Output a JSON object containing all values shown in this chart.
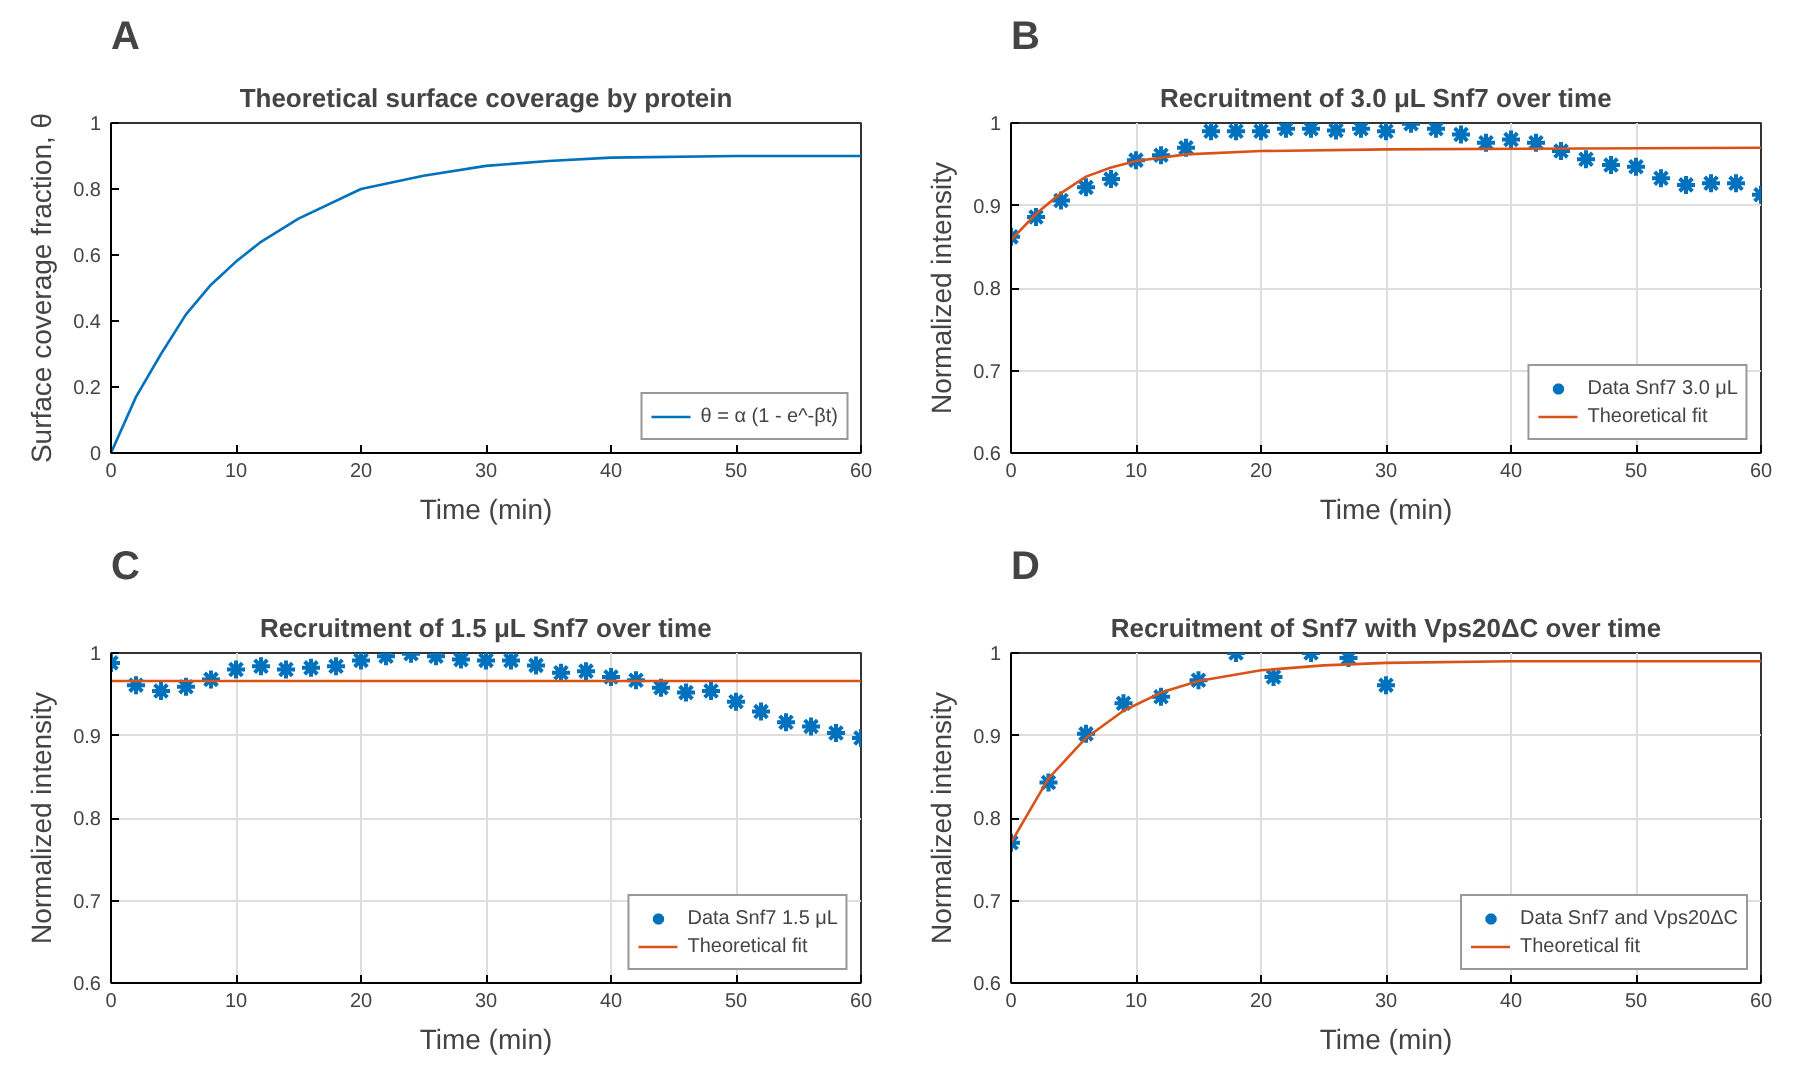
{
  "chart_data": [
    {
      "type": "line",
      "title": "Theoretical surface coverage by protein",
      "xlabel": "Time (min)",
      "ylabel": "Surface coverage fraction, θ",
      "annotations": [
        "A"
      ],
      "xlim": [
        0,
        60
      ],
      "xticks": [
        0,
        10,
        20,
        30,
        40,
        50,
        60
      ],
      "ylim": [
        0,
        1
      ],
      "yticks": [
        0,
        0.2,
        0.4,
        0.6,
        0.8,
        1
      ],
      "grid": false,
      "legend": "bottom right",
      "series": [
        {
          "name": "θ = α (1 - e^-βt)",
          "color": "#0072bd",
          "x": [
            0,
            2,
            4,
            6,
            8,
            10,
            12,
            15,
            20,
            25,
            30,
            35,
            40,
            50,
            60
          ],
          "values": [
            0,
            0.17,
            0.3,
            0.42,
            0.51,
            0.58,
            0.64,
            0.71,
            0.8,
            0.84,
            0.87,
            0.885,
            0.895,
            0.9,
            0.9
          ]
        }
      ]
    },
    {
      "type": "line",
      "title": "Recruitment of 3.0 μL Snf7 over time",
      "xlabel": "Time (min)",
      "ylabel": "Normalized intensity",
      "annotations": [
        "B"
      ],
      "xlim": [
        0,
        60
      ],
      "xticks": [
        0,
        10,
        20,
        30,
        40,
        50,
        60
      ],
      "ylim": [
        0.6,
        1
      ],
      "yticks": [
        0.6,
        0.7,
        0.8,
        0.9,
        1
      ],
      "grid": true,
      "legend": "bottom right",
      "series": [
        {
          "name": "Data Snf7 3.0 μL",
          "type": "scatter",
          "marker": "cross",
          "color": "#0072bd",
          "x": [
            0,
            2,
            4,
            6,
            8,
            10,
            12,
            14,
            16,
            18,
            20,
            22,
            24,
            26,
            28,
            30,
            32,
            34,
            36,
            38,
            40,
            42,
            44,
            46,
            48,
            50,
            52,
            54,
            56,
            58,
            60
          ],
          "values": [
            0.862,
            0.886,
            0.906,
            0.922,
            0.932,
            0.955,
            0.961,
            0.97,
            0.99,
            0.99,
            0.99,
            0.993,
            0.993,
            0.991,
            0.993,
            0.99,
            0.999,
            0.993,
            0.986,
            0.976,
            0.98,
            0.976,
            0.966,
            0.956,
            0.949,
            0.947,
            0.933,
            0.925,
            0.927,
            0.927,
            0.913
          ]
        },
        {
          "name": "Theoretical fit",
          "color": "#d95319",
          "x": [
            0,
            2,
            4,
            6,
            8,
            10,
            14,
            20,
            30,
            60
          ],
          "values": [
            0.858,
            0.89,
            0.915,
            0.935,
            0.946,
            0.954,
            0.962,
            0.966,
            0.968,
            0.97
          ]
        }
      ]
    },
    {
      "type": "line",
      "title": "Recruitment of 1.5 μL Snf7 over time",
      "xlabel": "Time (min)",
      "ylabel": "Normalized intensity",
      "annotations": [
        "C"
      ],
      "xlim": [
        0,
        60
      ],
      "xticks": [
        0,
        10,
        20,
        30,
        40,
        50,
        60
      ],
      "ylim": [
        0.6,
        1
      ],
      "yticks": [
        0.6,
        0.7,
        0.8,
        0.9,
        1
      ],
      "grid": true,
      "legend": "bottom right",
      "series": [
        {
          "name": "Data Snf7 1.5 μL",
          "type": "scatter",
          "marker": "cross",
          "color": "#0072bd",
          "x": [
            0,
            2,
            4,
            6,
            8,
            10,
            12,
            14,
            16,
            18,
            20,
            22,
            24,
            26,
            28,
            30,
            32,
            34,
            36,
            38,
            40,
            42,
            44,
            46,
            48,
            50,
            52,
            54,
            56,
            58,
            60
          ],
          "values": [
            0.988,
            0.961,
            0.954,
            0.959,
            0.968,
            0.98,
            0.984,
            0.98,
            0.982,
            0.984,
            0.991,
            0.996,
            0.999,
            0.996,
            0.992,
            0.991,
            0.991,
            0.985,
            0.976,
            0.978,
            0.971,
            0.967,
            0.958,
            0.952,
            0.954,
            0.941,
            0.929,
            0.916,
            0.911,
            0.903,
            0.897
          ]
        },
        {
          "name": "Theoretical fit",
          "color": "#d95319",
          "x": [
            0,
            60
          ],
          "values": [
            0.966,
            0.966
          ]
        }
      ]
    },
    {
      "type": "line",
      "title": "Recruitment of Snf7 with Vps20ΔC over time",
      "xlabel": "Time (min)",
      "ylabel": "Normalized intensity",
      "annotations": [
        "D"
      ],
      "xlim": [
        0,
        60
      ],
      "xticks": [
        0,
        10,
        20,
        30,
        40,
        50,
        60
      ],
      "ylim": [
        0.6,
        1
      ],
      "yticks": [
        0.6,
        0.7,
        0.8,
        0.9,
        1
      ],
      "grid": true,
      "legend": "bottom right",
      "series": [
        {
          "name": "Data Snf7 and Vps20ΔC",
          "type": "scatter",
          "marker": "cross",
          "color": "#0072bd",
          "x": [
            0,
            3,
            6,
            9,
            12,
            15,
            18,
            21,
            24,
            27,
            30
          ],
          "values": [
            0.77,
            0.843,
            0.902,
            0.939,
            0.947,
            0.967,
            1.0,
            0.971,
            1.0,
            0.994,
            0.961
          ]
        },
        {
          "name": "Theoretical fit",
          "color": "#d95319",
          "x": [
            0,
            3,
            6,
            9,
            12,
            15,
            20,
            25,
            30,
            40,
            60
          ],
          "values": [
            0.77,
            0.848,
            0.897,
            0.93,
            0.952,
            0.966,
            0.979,
            0.985,
            0.988,
            0.99,
            0.99
          ]
        }
      ]
    }
  ]
}
